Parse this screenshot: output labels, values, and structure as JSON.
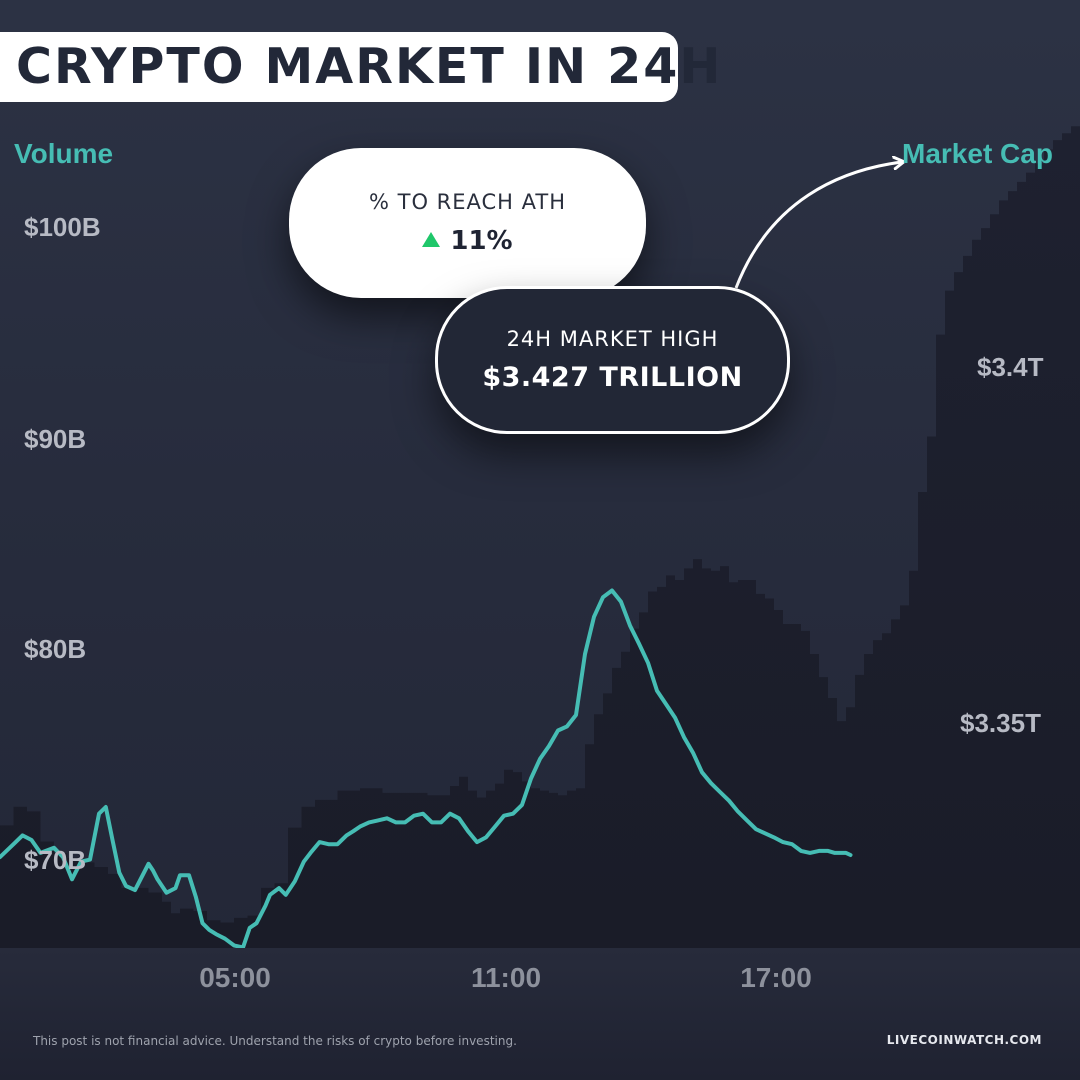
{
  "title": "CRYPTO MARKET IN 24H",
  "callouts": {
    "ath": {
      "label": "% TO REACH ATH",
      "value": "11%",
      "direction": "up",
      "arrow_color": "#1fc76a"
    },
    "high": {
      "label": "24H MARKET HIGH",
      "value": "$3.427 TRILLION"
    }
  },
  "footer": {
    "disclaimer": "This post is not financial advice. Understand the risks of crypto before investing.",
    "brand": "LIVECOINWATCH.COM"
  },
  "colors": {
    "background": "#232838",
    "market_cap_line": "#46bdb4",
    "volume_area": "#1b1e2b",
    "accent_label": "#46bdb4"
  },
  "chart_data": {
    "type": "line",
    "x_axis": {
      "ticks": [
        "05:00",
        "11:00",
        "17:00"
      ],
      "range": [
        "23:00",
        "23:00"
      ]
    },
    "y_axis_left": {
      "title": "Volume",
      "ticks": [
        "$100B",
        "$90B",
        "$80B",
        "$70B"
      ],
      "tick_values": [
        100,
        90,
        80,
        70
      ],
      "range": [
        66.1,
        103.6
      ],
      "unit": "billion USD"
    },
    "y_axis_right": {
      "title": "Market Cap",
      "ticks": [
        "$3.4T",
        "$3.35T"
      ],
      "tick_values": [
        3.4,
        3.35
      ],
      "range": [
        3.262,
        3.43
      ],
      "unit": "trillion USD"
    },
    "series": [
      {
        "name": "Market Cap",
        "axis": "right",
        "style": "line",
        "color": "#46bdb4",
        "points": [
          [
            0.0,
            3.2796
          ],
          [
            0.3,
            3.2821
          ],
          [
            0.5,
            3.2838
          ],
          [
            0.7,
            3.2829
          ],
          [
            0.9,
            3.2804
          ],
          [
            1.2,
            3.2814
          ],
          [
            1.4,
            3.2796
          ],
          [
            1.6,
            3.2753
          ],
          [
            1.8,
            3.2787
          ],
          [
            2.0,
            3.2791
          ],
          [
            2.2,
            3.288
          ],
          [
            2.35,
            3.2893
          ],
          [
            2.5,
            3.2829
          ],
          [
            2.65,
            3.2766
          ],
          [
            2.8,
            3.274
          ],
          [
            3.0,
            3.2732
          ],
          [
            3.2,
            3.2766
          ],
          [
            3.3,
            3.2783
          ],
          [
            3.4,
            3.277
          ],
          [
            3.5,
            3.2753
          ],
          [
            3.7,
            3.2727
          ],
          [
            3.9,
            3.2736
          ],
          [
            4.0,
            3.2761
          ],
          [
            4.2,
            3.2761
          ],
          [
            4.35,
            3.2719
          ],
          [
            4.5,
            3.2668
          ],
          [
            4.65,
            3.2655
          ],
          [
            4.8,
            3.2647
          ],
          [
            5.0,
            3.2638
          ],
          [
            5.2,
            3.2625
          ],
          [
            5.4,
            3.2621
          ],
          [
            5.55,
            3.2659
          ],
          [
            5.7,
            3.2668
          ],
          [
            5.9,
            3.2702
          ],
          [
            6.0,
            3.2723
          ],
          [
            6.2,
            3.2736
          ],
          [
            6.35,
            3.2723
          ],
          [
            6.55,
            3.2749
          ],
          [
            6.75,
            3.2787
          ],
          [
            6.9,
            3.2804
          ],
          [
            7.1,
            3.2825
          ],
          [
            7.3,
            3.2821
          ],
          [
            7.5,
            3.2821
          ],
          [
            7.7,
            3.2838
          ],
          [
            7.85,
            3.2846
          ],
          [
            8.0,
            3.2855
          ],
          [
            8.2,
            3.2863
          ],
          [
            8.4,
            3.2867
          ],
          [
            8.6,
            3.2871
          ],
          [
            8.8,
            3.2863
          ],
          [
            9.0,
            3.2863
          ],
          [
            9.2,
            3.2876
          ],
          [
            9.4,
            3.288
          ],
          [
            9.6,
            3.2863
          ],
          [
            9.8,
            3.2863
          ],
          [
            10.0,
            3.288
          ],
          [
            10.2,
            3.2871
          ],
          [
            10.4,
            3.2846
          ],
          [
            10.6,
            3.2825
          ],
          [
            10.8,
            3.2834
          ],
          [
            11.0,
            3.2855
          ],
          [
            11.2,
            3.2876
          ],
          [
            11.4,
            3.288
          ],
          [
            11.6,
            3.2897
          ],
          [
            11.8,
            3.2948
          ],
          [
            12.0,
            3.2986
          ],
          [
            12.2,
            3.3011
          ],
          [
            12.4,
            3.3041
          ],
          [
            12.6,
            3.3049
          ],
          [
            12.8,
            3.3071
          ],
          [
            13.0,
            3.3189
          ],
          [
            13.2,
            3.3261
          ],
          [
            13.4,
            3.3299
          ],
          [
            13.6,
            3.3312
          ],
          [
            13.8,
            3.329
          ],
          [
            14.0,
            3.3244
          ],
          [
            14.2,
            3.3209
          ],
          [
            14.4,
            3.3172
          ],
          [
            14.6,
            3.3118
          ],
          [
            14.8,
            3.3092
          ],
          [
            15.0,
            3.3066
          ],
          [
            15.2,
            3.3028
          ],
          [
            15.4,
            3.2998
          ],
          [
            15.6,
            3.296
          ],
          [
            15.8,
            3.2939
          ],
          [
            16.0,
            3.2922
          ],
          [
            16.2,
            3.2905
          ],
          [
            16.4,
            3.2884
          ],
          [
            16.6,
            3.2867
          ],
          [
            16.8,
            3.285
          ],
          [
            17.0,
            3.2842
          ],
          [
            17.2,
            3.2834
          ],
          [
            17.4,
            3.2825
          ],
          [
            17.6,
            3.2821
          ],
          [
            17.8,
            3.2808
          ],
          [
            18.0,
            3.2804
          ],
          [
            18.2,
            3.2808
          ],
          [
            18.4,
            3.2808
          ],
          [
            18.55,
            3.2804
          ],
          [
            18.7,
            3.2804
          ],
          [
            18.8,
            3.2804
          ],
          [
            18.9,
            3.28
          ]
        ]
      },
      {
        "name": "Volume",
        "axis": "left",
        "style": "area",
        "color": "#1b1e2b",
        "points": [
          [
            0.0,
            71.4
          ],
          [
            0.3,
            72.2
          ],
          [
            0.6,
            72.0
          ],
          [
            0.9,
            70.7
          ],
          [
            1.2,
            70.2
          ],
          [
            1.5,
            70.0
          ],
          [
            1.8,
            69.8
          ],
          [
            2.1,
            69.6
          ],
          [
            2.4,
            69.3
          ],
          [
            2.7,
            68.7
          ],
          [
            3.0,
            68.7
          ],
          [
            3.3,
            68.5
          ],
          [
            3.6,
            68.1
          ],
          [
            3.8,
            67.6
          ],
          [
            4.0,
            67.8
          ],
          [
            4.3,
            67.7
          ],
          [
            4.6,
            67.3
          ],
          [
            4.9,
            67.2
          ],
          [
            5.2,
            67.4
          ],
          [
            5.5,
            67.5
          ],
          [
            5.8,
            68.7
          ],
          [
            6.1,
            68.9
          ],
          [
            6.4,
            71.3
          ],
          [
            6.7,
            72.2
          ],
          [
            7.0,
            72.5
          ],
          [
            7.5,
            72.9
          ],
          [
            8.0,
            73.0
          ],
          [
            8.5,
            72.8
          ],
          [
            9.0,
            72.8
          ],
          [
            9.5,
            72.7
          ],
          [
            10.0,
            73.1
          ],
          [
            10.2,
            73.5
          ],
          [
            10.4,
            72.9
          ],
          [
            10.6,
            72.6
          ],
          [
            10.8,
            72.9
          ],
          [
            11.0,
            73.2
          ],
          [
            11.2,
            73.8
          ],
          [
            11.4,
            73.7
          ],
          [
            11.6,
            73.3
          ],
          [
            11.8,
            73.0
          ],
          [
            12.0,
            72.9
          ],
          [
            12.2,
            72.8
          ],
          [
            12.4,
            72.7
          ],
          [
            12.6,
            72.9
          ],
          [
            12.8,
            73.0
          ],
          [
            13.0,
            74.9
          ],
          [
            13.2,
            76.2
          ],
          [
            13.4,
            77.1
          ],
          [
            13.6,
            78.2
          ],
          [
            13.8,
            78.9
          ],
          [
            14.0,
            79.9
          ],
          [
            14.2,
            80.6
          ],
          [
            14.4,
            81.5
          ],
          [
            14.6,
            81.7
          ],
          [
            14.8,
            82.2
          ],
          [
            15.0,
            82.0
          ],
          [
            15.2,
            82.5
          ],
          [
            15.4,
            82.9
          ],
          [
            15.6,
            82.5
          ],
          [
            15.8,
            82.4
          ],
          [
            16.0,
            82.6
          ],
          [
            16.2,
            81.9
          ],
          [
            16.4,
            82.0
          ],
          [
            16.6,
            82.0
          ],
          [
            16.8,
            81.4
          ],
          [
            17.0,
            81.2
          ],
          [
            17.2,
            80.7
          ],
          [
            17.4,
            80.1
          ],
          [
            17.6,
            80.1
          ],
          [
            17.8,
            79.8
          ],
          [
            18.0,
            78.8
          ],
          [
            18.2,
            77.8
          ],
          [
            18.4,
            76.9
          ],
          [
            18.6,
            75.9
          ],
          [
            18.8,
            76.5
          ],
          [
            19.0,
            77.9
          ],
          [
            19.2,
            78.8
          ],
          [
            19.4,
            79.4
          ],
          [
            19.6,
            79.7
          ],
          [
            19.8,
            80.3
          ],
          [
            20.0,
            80.9
          ],
          [
            20.2,
            82.4
          ],
          [
            20.4,
            85.8
          ],
          [
            20.6,
            88.2
          ],
          [
            20.8,
            92.6
          ],
          [
            21.0,
            94.5
          ],
          [
            21.2,
            95.3
          ],
          [
            21.4,
            96.0
          ],
          [
            21.6,
            96.7
          ],
          [
            21.8,
            97.2
          ],
          [
            22.0,
            97.8
          ],
          [
            22.2,
            98.4
          ],
          [
            22.4,
            98.8
          ],
          [
            22.6,
            99.2
          ],
          [
            22.8,
            99.6
          ],
          [
            23.0,
            100.0
          ],
          [
            23.2,
            100.6
          ],
          [
            23.4,
            101.0
          ],
          [
            23.6,
            101.3
          ],
          [
            23.8,
            101.6
          ],
          [
            24.0,
            102.0
          ]
        ]
      }
    ],
    "annotations": [
      {
        "text": "24H MARKET HIGH",
        "value": 3.427,
        "unit": "trillion USD",
        "x": 21.0
      }
    ]
  }
}
